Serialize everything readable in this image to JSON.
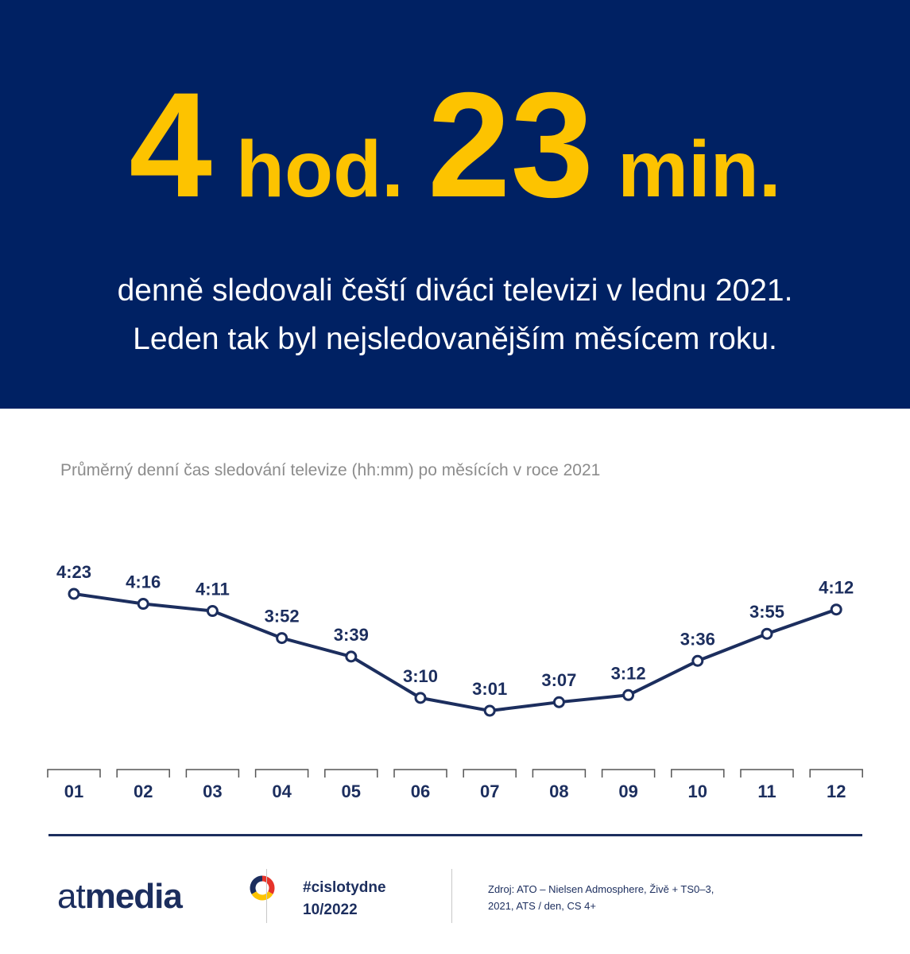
{
  "header": {
    "hours_value": "4",
    "hours_unit": "hod.",
    "minutes_value": "23",
    "minutes_unit": "min.",
    "line1": "denně sledovali čeští diváci televizi v lednu 2021.",
    "line2": "Leden tak byl nejsledovanějším měsícem roku."
  },
  "chart_data": {
    "type": "line",
    "title": "Průměrný denní čas sledování televize (hh:mm) po měsících v roce 2021",
    "categories": [
      "01",
      "02",
      "03",
      "04",
      "05",
      "06",
      "07",
      "08",
      "09",
      "10",
      "11",
      "12"
    ],
    "labels": [
      "4:23",
      "4:16",
      "4:11",
      "3:52",
      "3:39",
      "3:10",
      "3:01",
      "3:07",
      "3:12",
      "3:36",
      "3:55",
      "4:12"
    ],
    "values_minutes": [
      263,
      256,
      251,
      232,
      219,
      190,
      181,
      187,
      192,
      216,
      235,
      252
    ],
    "ylim_minutes": [
      160,
      270
    ],
    "grid": false,
    "legend": "none"
  },
  "footer": {
    "logo_part1": "at",
    "logo_part2": "media",
    "hashtag": "#cislotydne",
    "issue": "10/2022",
    "source_line1": "Zdroj: ATO – Nielsen Admosphere, Živě + TS0–3,",
    "source_line2": "2021, ATS / den, CS 4+"
  },
  "colors": {
    "navy": "#002163",
    "yellow": "#fdc300",
    "line": "#1c2e5e",
    "grey_text": "#8c8c8c"
  }
}
